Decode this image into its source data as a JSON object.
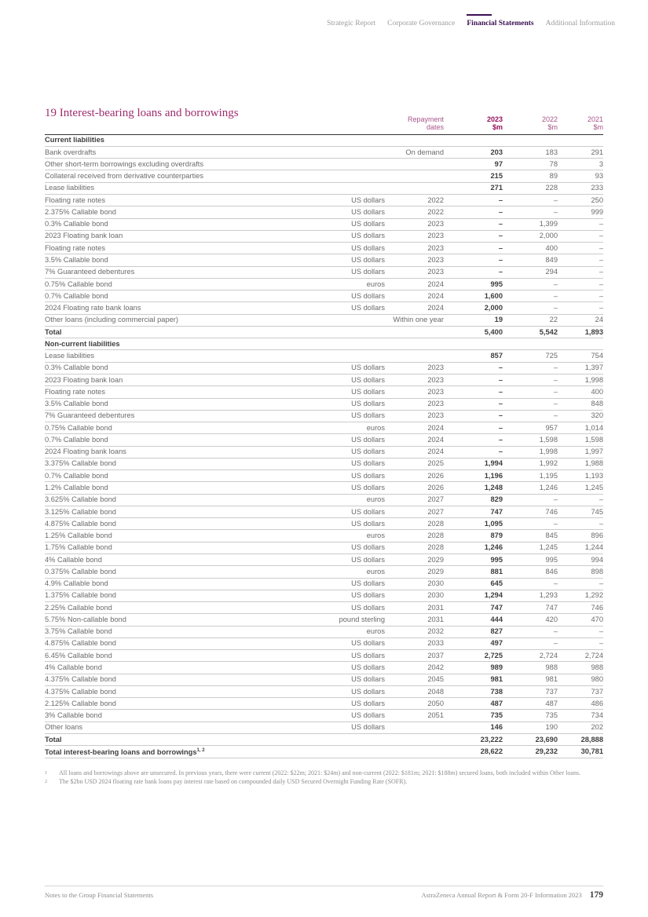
{
  "colors": {
    "accent_magenta": "#9e2d6e",
    "accent_magenta_bold": "#97105d",
    "nav_active_purple": "#3b1053",
    "text_dark": "#3e3e3e",
    "text_gray": "#6b6b6b"
  },
  "nav": {
    "items": [
      {
        "label": "Strategic Report",
        "active": false
      },
      {
        "label": "Corporate Governance",
        "active": false
      },
      {
        "label": "Financial Statements",
        "active": true
      },
      {
        "label": "Additional Information",
        "active": false
      }
    ]
  },
  "title": "19 Interest-bearing loans and borrowings",
  "table": {
    "headers": {
      "repayment_line1": "Repayment",
      "repayment_line2": "dates",
      "cols": [
        {
          "year": "2023",
          "unit": "$m"
        },
        {
          "year": "2022",
          "unit": "$m"
        },
        {
          "year": "2021",
          "unit": "$m"
        }
      ]
    },
    "sections": [
      {
        "header": "Current liabilities",
        "rows": [
          {
            "label": "Bank overdrafts",
            "cur": "",
            "date": "On demand",
            "v": [
              "203",
              "183",
              "291"
            ]
          },
          {
            "label": "Other short-term borrowings excluding overdrafts",
            "cur": "",
            "date": "",
            "v": [
              "97",
              "78",
              "3"
            ]
          },
          {
            "label": "Collateral received from derivative counterparties",
            "cur": "",
            "date": "",
            "v": [
              "215",
              "89",
              "93"
            ]
          },
          {
            "label": "Lease liabilities",
            "cur": "",
            "date": "",
            "v": [
              "271",
              "228",
              "233"
            ]
          },
          {
            "label": "Floating rate notes",
            "cur": "US dollars",
            "date": "2022",
            "v": [
              "–",
              "–",
              "250"
            ]
          },
          {
            "label": "2.375% Callable bond",
            "cur": "US dollars",
            "date": "2022",
            "v": [
              "–",
              "–",
              "999"
            ]
          },
          {
            "label": "0.3% Callable bond",
            "cur": "US dollars",
            "date": "2023",
            "v": [
              "–",
              "1,399",
              "–"
            ]
          },
          {
            "label": "2023 Floating bank loan",
            "cur": "US dollars",
            "date": "2023",
            "v": [
              "–",
              "2,000",
              "–"
            ]
          },
          {
            "label": "Floating rate notes",
            "cur": "US dollars",
            "date": "2023",
            "v": [
              "–",
              "400",
              "–"
            ]
          },
          {
            "label": "3.5% Callable bond",
            "cur": "US dollars",
            "date": "2023",
            "v": [
              "–",
              "849",
              "–"
            ]
          },
          {
            "label": "7% Guaranteed debentures",
            "cur": "US dollars",
            "date": "2023",
            "v": [
              "–",
              "294",
              "–"
            ]
          },
          {
            "label": "0.75% Callable bond",
            "cur": "euros",
            "date": "2024",
            "v": [
              "995",
              "–",
              "–"
            ]
          },
          {
            "label": "0.7% Callable bond",
            "cur": "US dollars",
            "date": "2024",
            "v": [
              "1,600",
              "–",
              "–"
            ]
          },
          {
            "label": "2024 Floating rate bank loans",
            "cur": "US dollars",
            "date": "2024",
            "v": [
              "2,000",
              "–",
              "–"
            ]
          },
          {
            "label": "Other loans (including commercial paper)",
            "cur": "",
            "date": "Within one year",
            "v": [
              "19",
              "22",
              "24"
            ]
          },
          {
            "label": "Total",
            "bold": true,
            "cur": "",
            "date": "",
            "v": [
              "5,400",
              "5,542",
              "1,893"
            ]
          }
        ]
      },
      {
        "header": "Non-current liabilities",
        "rows": [
          {
            "label": "Lease liabilities",
            "cur": "",
            "date": "",
            "v": [
              "857",
              "725",
              "754"
            ]
          },
          {
            "label": "0.3% Callable bond",
            "cur": "US dollars",
            "date": "2023",
            "v": [
              "–",
              "–",
              "1,397"
            ]
          },
          {
            "label": "2023 Floating bank loan",
            "cur": "US dollars",
            "date": "2023",
            "v": [
              "–",
              "–",
              "1,998"
            ]
          },
          {
            "label": "Floating rate notes",
            "cur": "US dollars",
            "date": "2023",
            "v": [
              "–",
              "–",
              "400"
            ]
          },
          {
            "label": "3.5% Callable bond",
            "cur": "US dollars",
            "date": "2023",
            "v": [
              "–",
              "–",
              "848"
            ]
          },
          {
            "label": "7% Guaranteed debentures",
            "cur": "US dollars",
            "date": "2023",
            "v": [
              "–",
              "–",
              "320"
            ]
          },
          {
            "label": "0.75% Callable bond",
            "cur": "euros",
            "date": "2024",
            "v": [
              "–",
              "957",
              "1,014"
            ]
          },
          {
            "label": "0.7% Callable bond",
            "cur": "US dollars",
            "date": "2024",
            "v": [
              "–",
              "1,598",
              "1,598"
            ]
          },
          {
            "label": "2024 Floating bank loans",
            "cur": "US dollars",
            "date": "2024",
            "v": [
              "–",
              "1,998",
              "1,997"
            ]
          },
          {
            "label": "3.375% Callable bond",
            "cur": "US dollars",
            "date": "2025",
            "v": [
              "1,994",
              "1,992",
              "1,988"
            ]
          },
          {
            "label": "0.7% Callable bond",
            "cur": "US dollars",
            "date": "2026",
            "v": [
              "1,196",
              "1,195",
              "1,193"
            ]
          },
          {
            "label": "1.2% Callable bond",
            "cur": "US dollars",
            "date": "2026",
            "v": [
              "1,248",
              "1,246",
              "1,245"
            ]
          },
          {
            "label": "3.625% Callable bond",
            "cur": "euros",
            "date": "2027",
            "v": [
              "829",
              "–",
              "–"
            ]
          },
          {
            "label": "3.125% Callable bond",
            "cur": "US dollars",
            "date": "2027",
            "v": [
              "747",
              "746",
              "745"
            ]
          },
          {
            "label": "4.875% Callable bond",
            "cur": "US dollars",
            "date": "2028",
            "v": [
              "1,095",
              "–",
              "–"
            ]
          },
          {
            "label": "1.25% Callable bond",
            "cur": "euros",
            "date": "2028",
            "v": [
              "879",
              "845",
              "896"
            ]
          },
          {
            "label": "1.75% Callable bond",
            "cur": "US dollars",
            "date": "2028",
            "v": [
              "1,246",
              "1,245",
              "1,244"
            ]
          },
          {
            "label": "4% Callable bond",
            "cur": "US dollars",
            "date": "2029",
            "v": [
              "995",
              "995",
              "994"
            ]
          },
          {
            "label": "0.375% Callable bond",
            "cur": "euros",
            "date": "2029",
            "v": [
              "881",
              "846",
              "898"
            ]
          },
          {
            "label": "4.9% Callable bond",
            "cur": "US dollars",
            "date": "2030",
            "v": [
              "645",
              "–",
              "–"
            ]
          },
          {
            "label": "1.375% Callable bond",
            "cur": "US dollars",
            "date": "2030",
            "v": [
              "1,294",
              "1,293",
              "1,292"
            ]
          },
          {
            "label": "2.25% Callable bond",
            "cur": "US dollars",
            "date": "2031",
            "v": [
              "747",
              "747",
              "746"
            ]
          },
          {
            "label": "5.75% Non-callable bond",
            "cur": "pound sterling",
            "date": "2031",
            "v": [
              "444",
              "420",
              "470"
            ]
          },
          {
            "label": "3.75% Callable bond",
            "cur": "euros",
            "date": "2032",
            "v": [
              "827",
              "–",
              "–"
            ]
          },
          {
            "label": "4.875% Callable bond",
            "cur": "US dollars",
            "date": "2033",
            "v": [
              "497",
              "–",
              "–"
            ]
          },
          {
            "label": "6.45% Callable bond",
            "cur": "US dollars",
            "date": "2037",
            "v": [
              "2,725",
              "2,724",
              "2,724"
            ]
          },
          {
            "label": "4% Callable bond",
            "cur": "US dollars",
            "date": "2042",
            "v": [
              "989",
              "988",
              "988"
            ]
          },
          {
            "label": "4.375% Callable bond",
            "cur": "US dollars",
            "date": "2045",
            "v": [
              "981",
              "981",
              "980"
            ]
          },
          {
            "label": "4.375% Callable bond",
            "cur": "US dollars",
            "date": "2048",
            "v": [
              "738",
              "737",
              "737"
            ]
          },
          {
            "label": "2.125% Callable bond",
            "cur": "US dollars",
            "date": "2050",
            "v": [
              "487",
              "487",
              "486"
            ]
          },
          {
            "label": "3% Callable bond",
            "cur": "US dollars",
            "date": "2051",
            "v": [
              "735",
              "735",
              "734"
            ]
          },
          {
            "label": "Other loans",
            "cur": "US dollars",
            "date": "",
            "v": [
              "146",
              "190",
              "202"
            ]
          },
          {
            "label": "Total",
            "bold": true,
            "cur": "",
            "date": "",
            "v": [
              "23,222",
              "23,690",
              "28,888"
            ]
          },
          {
            "label": "Total interest-bearing loans and borrowings",
            "sup": "1, 2",
            "bold": true,
            "cur": "",
            "date": "",
            "v": [
              "28,622",
              "29,232",
              "30,781"
            ]
          }
        ]
      }
    ]
  },
  "footnotes": [
    {
      "marker": "1",
      "text": "All loans and borrowings above are unsecured. In previous years, there were current (2022: $22m; 2021: $24m) and non-current (2022: $181m; 2021: $188m) secured loans, both included within Other loans."
    },
    {
      "marker": "2",
      "text": "The $2bn USD 2024 floating rate bank loans pay interest rate based on compounded daily USD Secured Overnight Funding Rate (SOFR)."
    }
  ],
  "footer": {
    "left": "Notes to the Group Financial Statements",
    "right": "AstraZeneca Annual Report & Form 20-F Information 2023",
    "page": "179"
  }
}
